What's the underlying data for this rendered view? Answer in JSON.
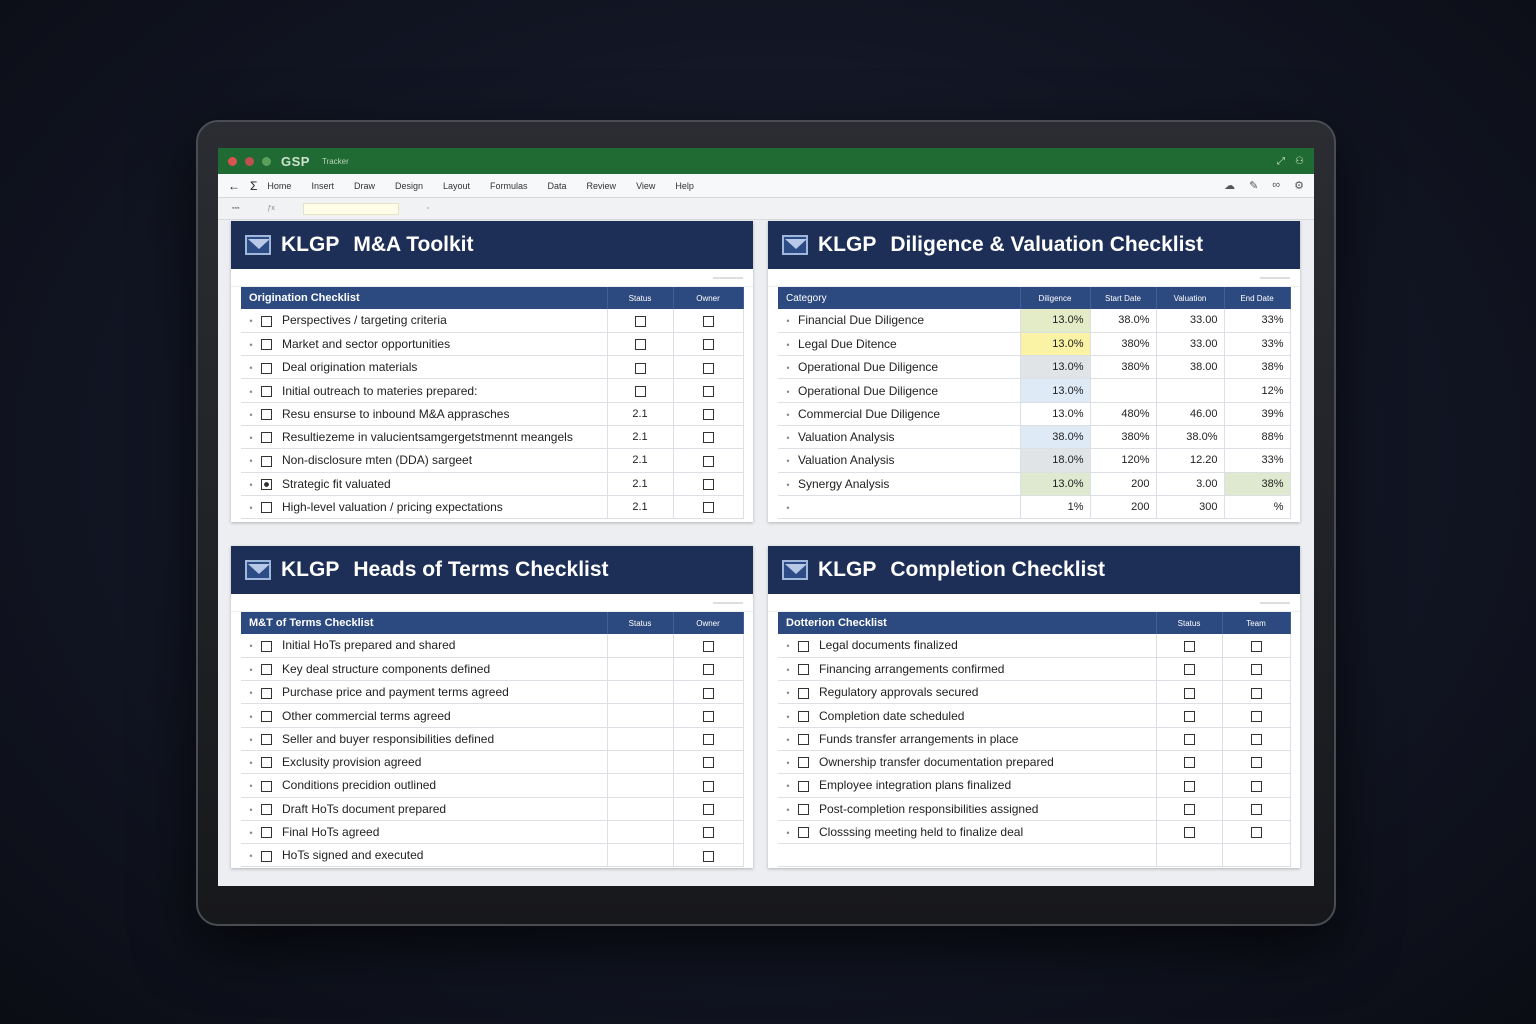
{
  "window": {
    "brand": "GSP",
    "doc_name": "Tracker",
    "right_icons": [
      "expand-icon",
      "share-icon"
    ]
  },
  "menubar": {
    "items": [
      "Home",
      "Insert",
      "Draw",
      "Design",
      "Layout",
      "Formulas",
      "Data",
      "Review",
      "View",
      "Help"
    ]
  },
  "panels": {
    "toolkit": {
      "brand": "KLGP",
      "title": "M&A Toolkit",
      "table_title": "Origination Checklist",
      "col2": "Status",
      "col3": "Owner",
      "rows": [
        {
          "label": "Perspectives / targeting criteria",
          "v": "",
          "checked": false
        },
        {
          "label": "Market and sector opportunities",
          "v": "",
          "checked": false
        },
        {
          "label": "Deal origination materials",
          "v": "",
          "checked": false
        },
        {
          "label": "Initial outreach to materies prepared:",
          "v": "",
          "checked": false
        },
        {
          "label": "Resu ensurse to inbound M&A apprasches",
          "v": "2.1",
          "checked": false
        },
        {
          "label": "Resultiezeme in valucientsamgergetstmennt meangels",
          "v": "2.1",
          "checked": false
        },
        {
          "label": "Non-disclosure mten (DDA) sargeet",
          "v": "2.1",
          "checked": false
        },
        {
          "label": "Strategic fit valuated",
          "v": "2.1",
          "checked": true
        },
        {
          "label": "High-level valuation / pricing expectations",
          "v": "2.1",
          "checked": false
        }
      ]
    },
    "diligence": {
      "brand": "KLGP",
      "title": "Diligence & Valuation Checklist",
      "headers": [
        "Category",
        "Diligence",
        "Start Date",
        "Valuation",
        "End Date"
      ],
      "rows": [
        {
          "label": "Financial Due Diligence",
          "a": "13.0%",
          "b": "38.0%",
          "c": "33.00",
          "d": "33%"
        },
        {
          "label": "Legal Due Ditence",
          "a": "13.0%",
          "b": "380%",
          "c": "33.00",
          "d": "33%"
        },
        {
          "label": "Operational Due Diligence",
          "a": "13.0%",
          "b": "380%",
          "c": "38.00",
          "d": "38%"
        },
        {
          "label": "Operational Due Diligence",
          "a": "13.0%",
          "b": "",
          "c": "",
          "d": "12%"
        },
        {
          "label": "Commercial Due Diligence",
          "a": "13.0%",
          "b": "480%",
          "c": "46.00",
          "d": "39%"
        },
        {
          "label": "Valuation Analysis",
          "a": "38.0%",
          "b": "380%",
          "c": "38.0%",
          "d": "88%"
        },
        {
          "label": "Valuation Analysis",
          "a": "18.0%",
          "b": "120%",
          "c": "12.20",
          "d": "33%"
        },
        {
          "label": "Synergy Analysis",
          "a": "13.0%",
          "b": "200",
          "c": "3.00",
          "d": "38%"
        },
        {
          "label": "",
          "a": "1%",
          "b": "200",
          "c": "300",
          "d": "%"
        }
      ]
    },
    "heads": {
      "brand": "KLGP",
      "title": "Heads of Terms Checklist",
      "table_title": "M&T of Terms Checklist",
      "col2": "Status",
      "col3": "Owner",
      "rows": [
        "Initial HoTs prepared and shared",
        "Key deal structure components defined",
        "Purchase price and payment terms agreed",
        "Other commercial terms agreed",
        "Seller and buyer responsibilities defined",
        "Exclusity provision agreed",
        "Conditions precidion outlined",
        "Draft HoTs document prepared",
        "Final HoTs agreed",
        "HoTs signed and executed"
      ]
    },
    "completion": {
      "brand": "KLGP",
      "title": "Completion Checklist",
      "table_title": "Dotterion Checklist",
      "col2": "Status",
      "col3": "Team",
      "rows": [
        "Legal documents finalized",
        "Financing arrangements confirmed",
        "Regulatory approvals secured",
        "Completion date scheduled",
        "Funds transfer arrangements in place",
        "Ownership transfer documentation prepared",
        "Employee integration plans finalized",
        "Post-completion responsibilities assigned",
        "Closssing meeting held to finalize deal"
      ]
    }
  }
}
